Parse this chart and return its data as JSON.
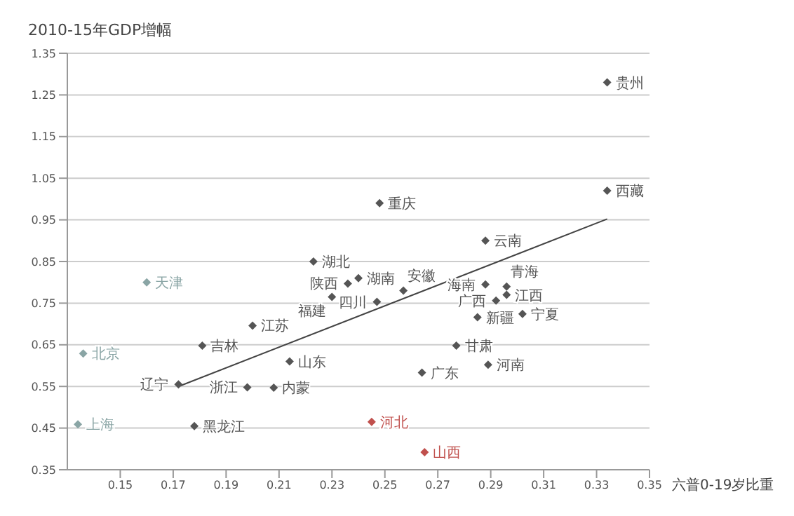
{
  "chart_data": {
    "type": "scatter",
    "ylabel": "2010-15年GDP增幅",
    "xlabel": "六普0-19岁比重",
    "xlim": [
      0.13,
      0.35
    ],
    "xticks": [
      0.15,
      0.17,
      0.19,
      0.21,
      0.23,
      0.25,
      0.27,
      0.29,
      0.31,
      0.33,
      0.35
    ],
    "ylim": [
      0.35,
      1.35
    ],
    "yticks": [
      0.35,
      0.45,
      0.55,
      0.65,
      0.75,
      0.85,
      0.95,
      1.05,
      1.15,
      1.25,
      1.35
    ],
    "grid": "y",
    "legend": false,
    "marker": "diamond",
    "series": [
      {
        "name": "贵州",
        "color": "#555555",
        "x": [
          0.334
        ],
        "values": [
          1.28
        ]
      },
      {
        "name": "西藏",
        "color": "#555555",
        "x": [
          0.334
        ],
        "values": [
          1.02
        ]
      },
      {
        "name": "重庆",
        "color": "#555555",
        "x": [
          0.248
        ],
        "values": [
          0.99
        ]
      },
      {
        "name": "云南",
        "color": "#555555",
        "x": [
          0.288
        ],
        "values": [
          0.9
        ]
      },
      {
        "name": "湖北",
        "color": "#555555",
        "x": [
          0.223
        ],
        "values": [
          0.85
        ]
      },
      {
        "name": "湖南",
        "color": "#555555",
        "x": [
          0.24
        ],
        "values": [
          0.81
        ]
      },
      {
        "name": "天津",
        "color": "#8aa5a5",
        "x": [
          0.16
        ],
        "values": [
          0.8
        ]
      },
      {
        "name": "陕西",
        "color": "#555555",
        "x": [
          0.236
        ],
        "values": [
          0.797
        ]
      },
      {
        "name": "海南",
        "color": "#555555",
        "x": [
          0.288
        ],
        "values": [
          0.795
        ]
      },
      {
        "name": "青海",
        "color": "#555555",
        "x": [
          0.296
        ],
        "values": [
          0.79
        ]
      },
      {
        "name": "安徽",
        "color": "#555555",
        "x": [
          0.257
        ],
        "values": [
          0.78
        ]
      },
      {
        "name": "江西",
        "color": "#555555",
        "x": [
          0.296
        ],
        "values": [
          0.77
        ]
      },
      {
        "name": "福建",
        "color": "#555555",
        "x": [
          0.23
        ],
        "values": [
          0.765
        ]
      },
      {
        "name": "广西",
        "color": "#555555",
        "x": [
          0.292
        ],
        "values": [
          0.756
        ]
      },
      {
        "name": "四川",
        "color": "#555555",
        "x": [
          0.247
        ],
        "values": [
          0.753
        ]
      },
      {
        "name": "宁夏",
        "color": "#555555",
        "x": [
          0.302
        ],
        "values": [
          0.724
        ]
      },
      {
        "name": "新疆",
        "color": "#555555",
        "x": [
          0.285
        ],
        "values": [
          0.716
        ]
      },
      {
        "name": "江苏",
        "color": "#555555",
        "x": [
          0.2
        ],
        "values": [
          0.696
        ]
      },
      {
        "name": "吉林",
        "color": "#555555",
        "x": [
          0.181
        ],
        "values": [
          0.648
        ]
      },
      {
        "name": "甘肃",
        "color": "#555555",
        "x": [
          0.277
        ],
        "values": [
          0.648
        ]
      },
      {
        "name": "北京",
        "color": "#8aa5a5",
        "x": [
          0.136
        ],
        "values": [
          0.629
        ]
      },
      {
        "name": "山东",
        "color": "#555555",
        "x": [
          0.214
        ],
        "values": [
          0.61
        ]
      },
      {
        "name": "河南",
        "color": "#555555",
        "x": [
          0.289
        ],
        "values": [
          0.602
        ]
      },
      {
        "name": "广东",
        "color": "#555555",
        "x": [
          0.264
        ],
        "values": [
          0.583
        ]
      },
      {
        "name": "辽宁",
        "color": "#555555",
        "x": [
          0.172
        ],
        "values": [
          0.555
        ]
      },
      {
        "name": "浙江",
        "color": "#555555",
        "x": [
          0.198
        ],
        "values": [
          0.548
        ]
      },
      {
        "name": "内蒙",
        "color": "#555555",
        "x": [
          0.208
        ],
        "values": [
          0.547
        ]
      },
      {
        "name": "河北",
        "color": "#c0504d",
        "x": [
          0.245
        ],
        "values": [
          0.465
        ]
      },
      {
        "name": "上海",
        "color": "#8aa5a5",
        "x": [
          0.134
        ],
        "values": [
          0.459
        ]
      },
      {
        "name": "黑龙江",
        "color": "#555555",
        "x": [
          0.178
        ],
        "values": [
          0.455
        ]
      },
      {
        "name": "山西",
        "color": "#c0504d",
        "x": [
          0.265
        ],
        "values": [
          0.392
        ]
      },
      {
        "type": "line",
        "marker": "none",
        "color": "#444444",
        "x": [
          0.172,
          0.334
        ],
        "values": [
          0.55,
          0.952
        ]
      }
    ]
  }
}
